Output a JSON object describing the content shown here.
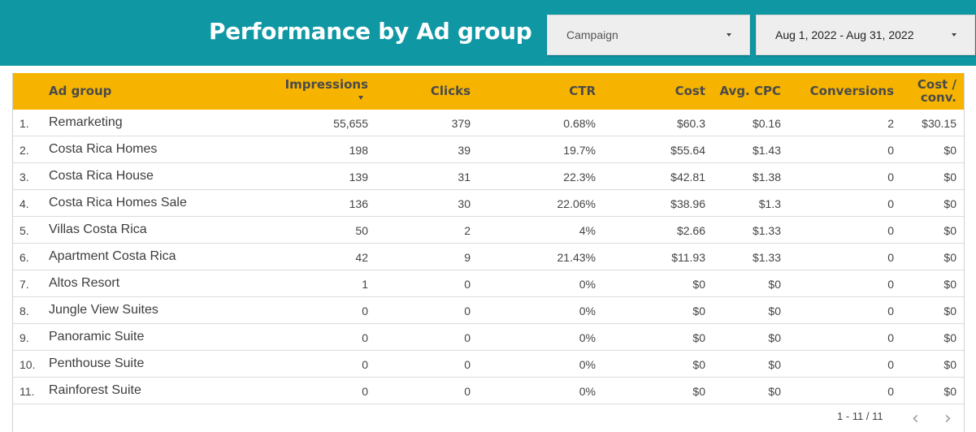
{
  "header": {
    "title": "Performance by Ad group",
    "campaign_dropdown": "Campaign",
    "date_dropdown": "Aug 1, 2022 - Aug 31, 2022"
  },
  "table": {
    "columns": {
      "ad_group": "Ad group",
      "impressions": "Impressions",
      "clicks": "Clicks",
      "ctr": "CTR",
      "cost": "Cost",
      "avg_cpc": "Avg. CPC",
      "conversions": "Conversions",
      "cost_conv_1": "Cost /",
      "cost_conv_2": "conv."
    },
    "rows": [
      {
        "idx": "1.",
        "name": "Remarketing",
        "impressions": "55,655",
        "clicks": "379",
        "ctr": "0.68%",
        "cost": "$60.3",
        "cpc": "$0.16",
        "conv": "2",
        "cost_conv": "$30.15"
      },
      {
        "idx": "2.",
        "name": "Costa Rica Homes",
        "impressions": "198",
        "clicks": "39",
        "ctr": "19.7%",
        "cost": "$55.64",
        "cpc": "$1.43",
        "conv": "0",
        "cost_conv": "$0"
      },
      {
        "idx": "3.",
        "name": "Costa Rica House",
        "impressions": "139",
        "clicks": "31",
        "ctr": "22.3%",
        "cost": "$42.81",
        "cpc": "$1.38",
        "conv": "0",
        "cost_conv": "$0"
      },
      {
        "idx": "4.",
        "name": "Costa Rica Homes Sale",
        "impressions": "136",
        "clicks": "30",
        "ctr": "22.06%",
        "cost": "$38.96",
        "cpc": "$1.3",
        "conv": "0",
        "cost_conv": "$0"
      },
      {
        "idx": "5.",
        "name": "Villas Costa Rica",
        "impressions": "50",
        "clicks": "2",
        "ctr": "4%",
        "cost": "$2.66",
        "cpc": "$1.33",
        "conv": "0",
        "cost_conv": "$0"
      },
      {
        "idx": "6.",
        "name": "Apartment Costa Rica",
        "impressions": "42",
        "clicks": "9",
        "ctr": "21.43%",
        "cost": "$11.93",
        "cpc": "$1.33",
        "conv": "0",
        "cost_conv": "$0"
      },
      {
        "idx": "7.",
        "name": "Altos Resort",
        "impressions": "1",
        "clicks": "0",
        "ctr": "0%",
        "cost": "$0",
        "cpc": "$0",
        "conv": "0",
        "cost_conv": "$0"
      },
      {
        "idx": "8.",
        "name": "Jungle View Suites",
        "impressions": "0",
        "clicks": "0",
        "ctr": "0%",
        "cost": "$0",
        "cpc": "$0",
        "conv": "0",
        "cost_conv": "$0"
      },
      {
        "idx": "9.",
        "name": "Panoramic Suite",
        "impressions": "0",
        "clicks": "0",
        "ctr": "0%",
        "cost": "$0",
        "cpc": "$0",
        "conv": "0",
        "cost_conv": "$0"
      },
      {
        "idx": "10.",
        "name": "Penthouse Suite",
        "impressions": "0",
        "clicks": "0",
        "ctr": "0%",
        "cost": "$0",
        "cpc": "$0",
        "conv": "0",
        "cost_conv": "$0"
      },
      {
        "idx": "11.",
        "name": "Rainforest Suite",
        "impressions": "0",
        "clicks": "0",
        "ctr": "0%",
        "cost": "$0",
        "cpc": "$0",
        "conv": "0",
        "cost_conv": "$0"
      }
    ]
  },
  "pagination": {
    "label": "1 - 11 / 11",
    "prev_icon": "chevron-left-icon",
    "next_icon": "chevron-right-icon"
  },
  "colors": {
    "header_bg": "#0f97a4",
    "table_header_bg": "#f6b400"
  }
}
